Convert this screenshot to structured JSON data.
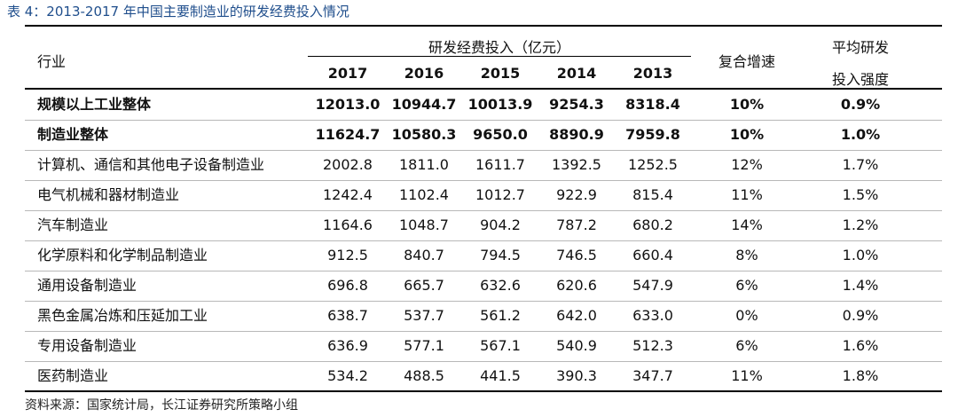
{
  "title": "表 4：2013-2017 年中国主要制造业的研发经费投入情况",
  "header": {
    "industry": "行业",
    "group": "研发经费投入（亿元）",
    "years": [
      "2017",
      "2016",
      "2015",
      "2014",
      "2013"
    ],
    "cagr": "复合增速",
    "intensity_line1": "平均研发",
    "intensity_line2": "投入强度"
  },
  "rows": [
    {
      "name": "规模以上工业整体",
      "v2017": "12013.0",
      "v2016": "10944.7",
      "v2015": "10013.9",
      "v2014": "9254.3",
      "v2013": "8318.4",
      "cagr": "10%",
      "intensity": "0.9%",
      "bold": true
    },
    {
      "name": "制造业整体",
      "v2017": "11624.7",
      "v2016": "10580.3",
      "v2015": "9650.0",
      "v2014": "8890.9",
      "v2013": "7959.8",
      "cagr": "10%",
      "intensity": "1.0%",
      "bold": true
    },
    {
      "name": "计算机、通信和其他电子设备制造业",
      "v2017": "2002.8",
      "v2016": "1811.0",
      "v2015": "1611.7",
      "v2014": "1392.5",
      "v2013": "1252.5",
      "cagr": "12%",
      "intensity": "1.7%",
      "bold": false
    },
    {
      "name": "电气机械和器材制造业",
      "v2017": "1242.4",
      "v2016": "1102.4",
      "v2015": "1012.7",
      "v2014": "922.9",
      "v2013": "815.4",
      "cagr": "11%",
      "intensity": "1.5%",
      "bold": false
    },
    {
      "name": "汽车制造业",
      "v2017": "1164.6",
      "v2016": "1048.7",
      "v2015": "904.2",
      "v2014": "787.2",
      "v2013": "680.2",
      "cagr": "14%",
      "intensity": "1.2%",
      "bold": false
    },
    {
      "name": "化学原料和化学制品制造业",
      "v2017": "912.5",
      "v2016": "840.7",
      "v2015": "794.5",
      "v2014": "746.5",
      "v2013": "660.4",
      "cagr": "8%",
      "intensity": "1.0%",
      "bold": false
    },
    {
      "name": "通用设备制造业",
      "v2017": "696.8",
      "v2016": "665.7",
      "v2015": "632.6",
      "v2014": "620.6",
      "v2013": "547.9",
      "cagr": "6%",
      "intensity": "1.4%",
      "bold": false
    },
    {
      "name": "黑色金属冶炼和压延加工业",
      "v2017": "638.7",
      "v2016": "537.7",
      "v2015": "561.2",
      "v2014": "642.0",
      "v2013": "633.0",
      "cagr": "0%",
      "intensity": "0.9%",
      "bold": false
    },
    {
      "name": "专用设备制造业",
      "v2017": "636.9",
      "v2016": "577.1",
      "v2015": "567.1",
      "v2014": "540.9",
      "v2013": "512.3",
      "cagr": "6%",
      "intensity": "1.6%",
      "bold": false
    },
    {
      "name": "医药制造业",
      "v2017": "534.2",
      "v2016": "488.5",
      "v2015": "441.5",
      "v2014": "390.3",
      "v2013": "347.7",
      "cagr": "11%",
      "intensity": "1.8%",
      "bold": false
    }
  ],
  "source": "资料来源：国家统计局，长江证券研究所策略小组"
}
